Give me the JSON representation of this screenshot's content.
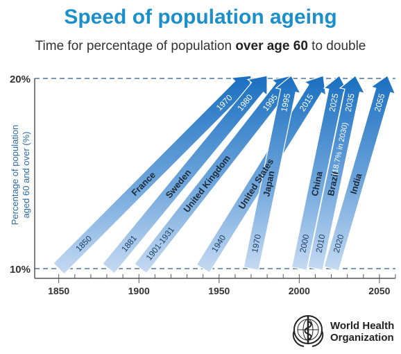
{
  "header": {
    "title": "Speed of population ageing",
    "subtitle_pre": "Time for percentage of population ",
    "subtitle_bold": "over age 60",
    "subtitle_post": " to double"
  },
  "chart_data": {
    "type": "arrow-chart",
    "ylabel_line1": "Percentage of population",
    "ylabel_line2": "aged 60 and over (%)",
    "y_ticks": [
      "10%",
      "20%"
    ],
    "x_ticks": [
      1850,
      1900,
      1950,
      2000,
      2050
    ],
    "xlim": [
      1835,
      2060
    ],
    "series": [
      {
        "name": "France",
        "start_label": "1850",
        "end_label": "1970",
        "start_year": 1850,
        "end_year": 1970,
        "color": "#2a7fc6"
      },
      {
        "name": "Sweden",
        "start_label": "1881",
        "end_label": "1980",
        "start_year": 1881,
        "end_year": 1980,
        "color": "#2a7fc6"
      },
      {
        "name": "United Kingdom",
        "start_label": "1901-1931",
        "end_label": "1995",
        "start_year": 1901,
        "end_year": 1995,
        "color": "#2a7fc6"
      },
      {
        "name": "United States",
        "start_label": "1940",
        "end_label": "2015",
        "start_year": 1940,
        "end_year": 2015,
        "color": "#2a7fc6"
      },
      {
        "name": "Japan",
        "start_label": "1970",
        "end_label": "1995",
        "start_year": 1970,
        "end_year": 1995,
        "color": "#2a7fc6"
      },
      {
        "name": "China",
        "start_label": "2000",
        "end_label": "2025",
        "start_year": 2000,
        "end_year": 2025,
        "color": "#2a7fc6"
      },
      {
        "name": "Brazil",
        "start_label": "2010",
        "end_label": "2035",
        "start_year": 2010,
        "end_year": 2035,
        "color": "#2a7fc6"
      },
      {
        "name": "India",
        "start_label": "2020",
        "end_label": "2055",
        "start_year": 2020,
        "end_year": 2055,
        "color": "#2a7fc6"
      }
    ],
    "annotation": "(18.7% in 2030)"
  },
  "logo": {
    "name": "World Health Organization",
    "line1": "World Health",
    "line2": "Organization"
  }
}
